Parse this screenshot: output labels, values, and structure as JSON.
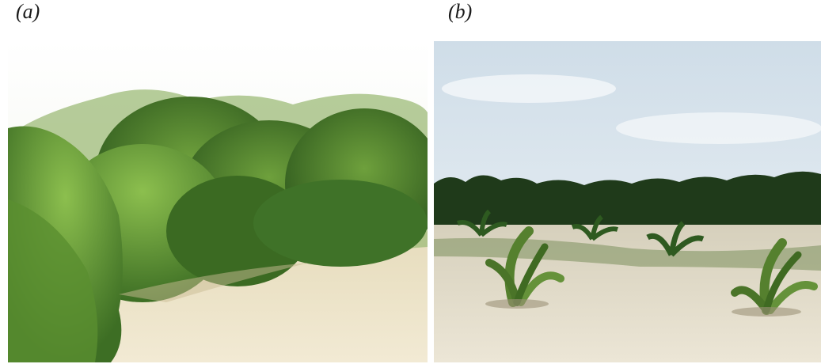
{
  "panels": [
    {
      "label": "(a)",
      "scene": "mangrove-shrubs-on-sandy-shore"
    },
    {
      "label": "(b)",
      "scene": "young-coconut-palms-on-sand-flat"
    }
  ],
  "colors": {
    "sky_a": "#f4f6ef",
    "foliage_dark": "#2f5a1e",
    "foliage_mid": "#4e8a2c",
    "foliage_light": "#7fb34a",
    "sand": "#ece3c6",
    "sky_b": "#dfe9f1",
    "palm_dark": "#1f3a1a",
    "sand_b": "#e4ddca"
  }
}
